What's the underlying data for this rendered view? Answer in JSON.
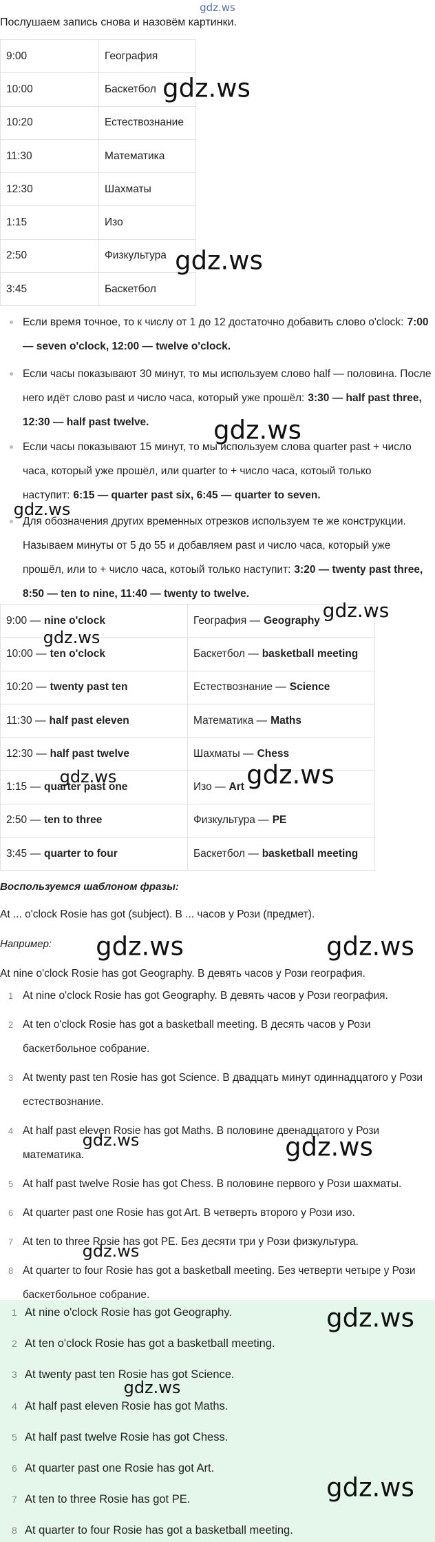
{
  "header": {
    "logo": "gdz.ws",
    "intro": "Послушаем запись снова и назовём картинки."
  },
  "table1": {
    "rows": [
      [
        "9:00",
        "География"
      ],
      [
        "10:00",
        "Баскетбол"
      ],
      [
        "10:20",
        "Естествознание"
      ],
      [
        "11:30",
        "Математика"
      ],
      [
        "12:30",
        "Шахматы"
      ],
      [
        "1:15",
        "Изо"
      ],
      [
        "2:50",
        "Физкультура"
      ],
      [
        "3:45",
        "Баскетбол"
      ]
    ]
  },
  "bullets": [
    {
      "text": "Если время точное, то к числу от 1 до 12 достаточно добавить слово o'clock:",
      "bold": "7:00 — seven o'clock, 12:00 — twelve o'clock."
    },
    {
      "text": "Если часы показывают 30 минут, то мы используем слово half — половина. После него идёт слово past и число часа, который уже прошёл:",
      "bold": "3:30 — half past three, 12:30 — half past twelve."
    },
    {
      "text": "Если часы показывают 15 минут, то мы используем слова quarter past + число часа, который уже прошёл, или quarter to + число часа, котоый только наступит:",
      "bold": "6:15 — quarter past six, 6:45 — quarter to seven."
    },
    {
      "text": "Для обозначения других временных отрезков используем те же конструкции. Называем минуты от 5 до 55 и добавляем past и число часа, который уже прошёл, или to + число часа, котоый только наступит:",
      "bold": "3:20 — twenty past three, 8:50 — ten to nine, 11:40 — twenty to twelve."
    }
  ],
  "table2": {
    "rows": [
      [
        {
          "plain": "9:00 —",
          "bold": "nine o'clock"
        },
        {
          "plain": "География —",
          "bold": "Geography"
        }
      ],
      [
        {
          "plain": "10:00 —",
          "bold": "ten o'clock"
        },
        {
          "plain": "Баскетбол —",
          "bold": "basketball meeting"
        }
      ],
      [
        {
          "plain": "10:20 —",
          "bold": "twenty past ten"
        },
        {
          "plain": "Естествознание —",
          "bold": "Science"
        }
      ],
      [
        {
          "plain": "11:30 —",
          "bold": "half past eleven"
        },
        {
          "plain": "Математика —",
          "bold": "Maths"
        }
      ],
      [
        {
          "plain": "12:30 —",
          "bold": "half past twelve"
        },
        {
          "plain": "Шахматы —",
          "bold": "Chess"
        }
      ],
      [
        {
          "plain": "1:15 —",
          "bold": "quarter past one"
        },
        {
          "plain": "Изо —",
          "bold": "Art"
        }
      ],
      [
        {
          "plain": "2:50 —",
          "bold": "ten to three"
        },
        {
          "plain": "Физкультура —",
          "bold": "PE"
        }
      ],
      [
        {
          "plain": "3:45 —",
          "bold": "quarter to four"
        },
        {
          "plain": "Баскетбол —",
          "bold": "basketball meeting"
        }
      ]
    ]
  },
  "template": {
    "heading": "Воспользуемся шаблоном фразы:",
    "pattern": "At ... o'clock Rosie has got (subject). В ... часов у Рози (предмет).",
    "example_heading": "Например:",
    "example": "At nine o'clock Rosie has got Geography. В девять часов у Рози география."
  },
  "list1": [
    {
      "n": 1,
      "text": "At nine o'clock Rosie has got Geography. В девять часов у Рози география."
    },
    {
      "n": 2,
      "text": "At ten o'clock Rosie has got a basketball meeting. В десять часов у Рози баскетбольное собрание."
    },
    {
      "n": 3,
      "text": "At twenty past ten Rosie has got Science. В двадцать минут одиннадцатого у Рози естествознание."
    },
    {
      "n": 4,
      "text": "At half past eleven Rosie has got Maths. В половине двенадцатого у Рози математика."
    },
    {
      "n": 5,
      "text": "At half past twelve Rosie has got Chess. В половине первого у Рози шахматы."
    },
    {
      "n": 6,
      "text": "At quarter past one Rosie has got Art. В четверть второго у Рози изо."
    },
    {
      "n": 7,
      "text": "At ten to three Rosie has got PE. Без десяти три у Рози физкультура."
    },
    {
      "n": 8,
      "text": "At quarter to four Rosie has got a basketball meeting. Без четверти четыре у Рози баскетбольное собрание."
    }
  ],
  "list2": [
    {
      "n": 1,
      "text": "At nine o'clock Rosie has got Geography."
    },
    {
      "n": 2,
      "text": "At ten o'clock Rosie has got a basketball meeting."
    },
    {
      "n": 3,
      "text": "At twenty past ten Rosie has got Science."
    },
    {
      "n": 4,
      "text": "At half past eleven Rosie has got Maths."
    },
    {
      "n": 5,
      "text": "At half past twelve Rosie has got Chess."
    },
    {
      "n": 6,
      "text": "At quarter past one Rosie has got Art."
    },
    {
      "n": 7,
      "text": "At ten to three Rosie has got PE."
    },
    {
      "n": 8,
      "text": "At quarter to four Rosie has got a basketball meeting."
    }
  ],
  "watermarks": [
    "gdz.ws",
    "gdz.ws",
    "gdz.ws",
    "gdz.ws",
    "gdz.ws",
    "gdz.ws",
    "gdz.ws",
    "gdz.ws",
    "gdz.ws",
    "gdz.ws",
    "gdz.ws",
    "gdz.ws",
    "gdz.ws",
    "gdz.ws",
    "gdz.ws",
    "gdz.ws"
  ]
}
